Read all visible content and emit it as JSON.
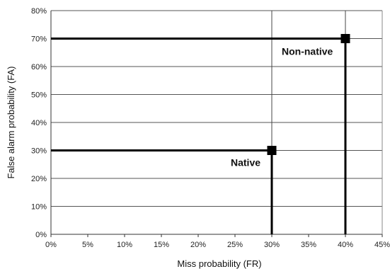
{
  "chart_data": {
    "type": "scatter",
    "title": "",
    "xlabel": "Miss probability (FR)",
    "ylabel": "False alarm probability (FA)",
    "xlim": [
      0,
      45
    ],
    "ylim": [
      0,
      80
    ],
    "x_ticks": [
      "0%",
      "5%",
      "10%",
      "15%",
      "20%",
      "25%",
      "30%",
      "35%",
      "40%",
      "45%"
    ],
    "y_ticks": [
      "0%",
      "10%",
      "20%",
      "30%",
      "40%",
      "50%",
      "60%",
      "70%",
      "80%"
    ],
    "grid": {
      "horizontal": true,
      "vertical": false
    },
    "series": [
      {
        "name": "Native",
        "x": [
          30
        ],
        "y": [
          30
        ]
      },
      {
        "name": "Non-native",
        "x": [
          40
        ],
        "y": [
          70
        ]
      }
    ],
    "reference_lines": [
      {
        "axis": "x",
        "value": 30
      },
      {
        "axis": "x",
        "value": 40
      }
    ],
    "annotations": [
      {
        "text": "Native",
        "x": 30,
        "y": 30
      },
      {
        "text": "Non-native",
        "x": 40,
        "y": 70
      }
    ]
  }
}
